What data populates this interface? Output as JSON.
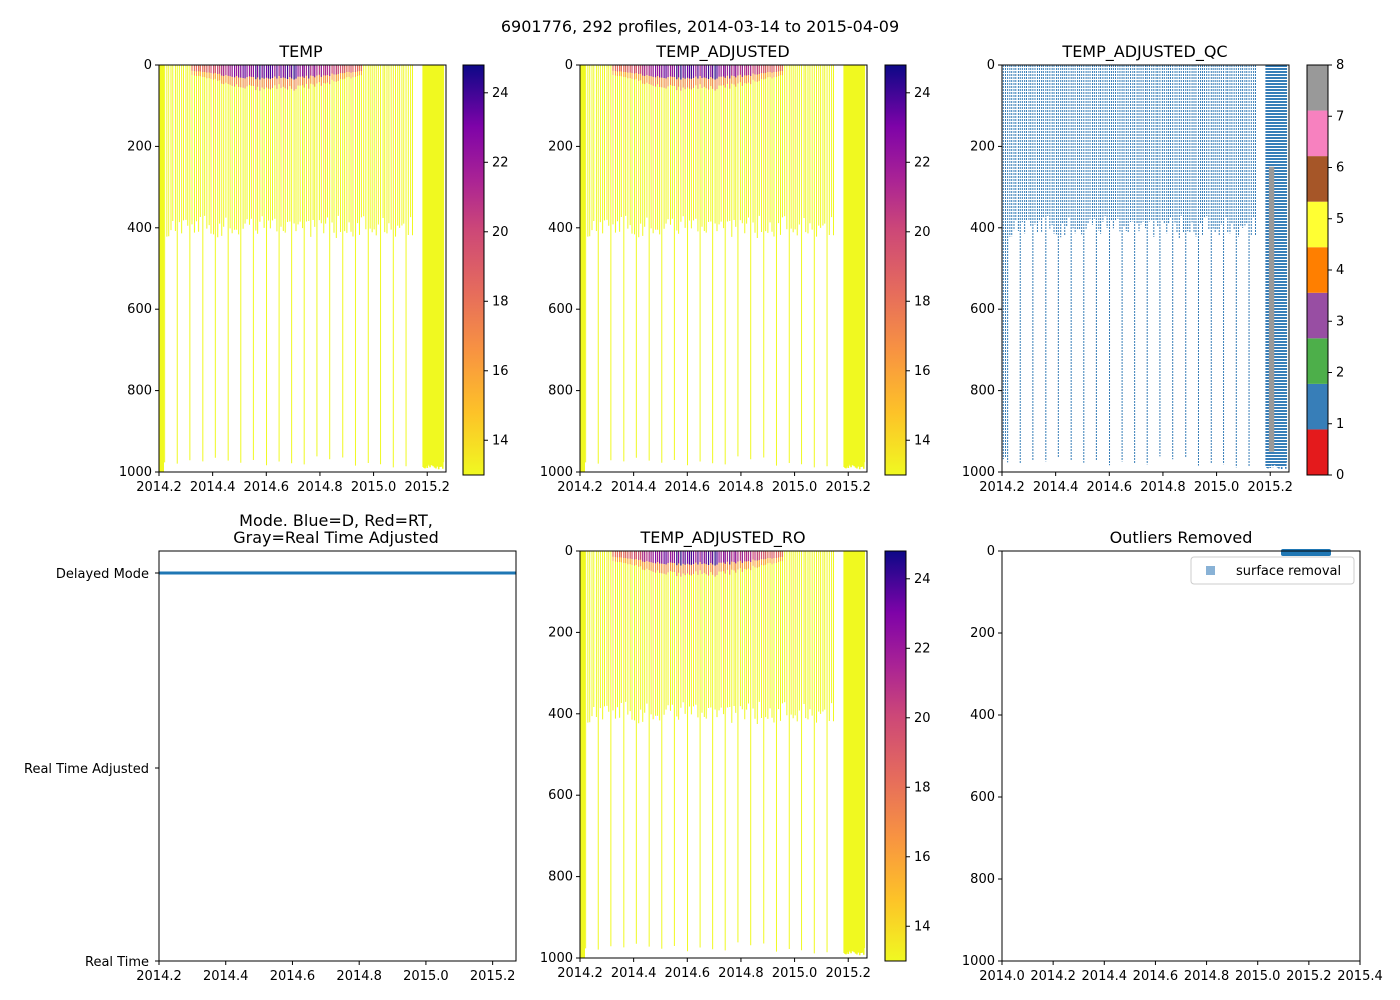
{
  "suptitle": "6901776, 292 profiles, 2014-03-14 to 2015-04-09",
  "colors": {
    "qc_palette": [
      "#e41a1c",
      "#377eb8",
      "#4daf4a",
      "#984ea3",
      "#ff7f00",
      "#ffff33",
      "#a65628",
      "#f781bf",
      "#999999"
    ],
    "mode_delayed": "#1f77b4",
    "legend_marker": "#89b2d6"
  },
  "chart_data": [
    {
      "id": "temp",
      "type": "heatmap",
      "title": "TEMP",
      "x_range": [
        2014.2,
        2015.27
      ],
      "y_range": [
        1000,
        0
      ],
      "x_ticks": [
        "2014.2",
        "2014.4",
        "2014.6",
        "2014.8",
        "2015.0",
        "2015.2"
      ],
      "y_ticks": [
        "0",
        "200",
        "400",
        "600",
        "800",
        "1000"
      ],
      "colorbar": {
        "colormap": "plasma_r",
        "range": [
          13,
          24.8
        ],
        "ticks": [
          "14",
          "16",
          "18",
          "20",
          "22",
          "24"
        ]
      },
      "notes": "Profiles mostly 13-14 °C (yellow); warm 20-24 °C layers in top ~30 m between 2014.3 and 2014.95; typical profile depth ~385 dbar, occasional deep profiles to ~985 dbar; densely sampled deep profiles after 2015.18."
    },
    {
      "id": "temp_adjusted",
      "type": "heatmap",
      "title": "TEMP_ADJUSTED",
      "x_range": [
        2014.2,
        2015.27
      ],
      "y_range": [
        1000,
        0
      ],
      "x_ticks": [
        "2014.2",
        "2014.4",
        "2014.6",
        "2014.8",
        "2015.0",
        "2015.2"
      ],
      "y_ticks": [
        "0",
        "200",
        "400",
        "600",
        "800",
        "1000"
      ],
      "colorbar": {
        "colormap": "plasma_r",
        "range": [
          13,
          24.8
        ],
        "ticks": [
          "14",
          "16",
          "18",
          "20",
          "22",
          "24"
        ]
      }
    },
    {
      "id": "temp_adjusted_qc",
      "type": "heatmap",
      "title": "TEMP_ADJUSTED_QC",
      "x_range": [
        2014.2,
        2015.27
      ],
      "y_range": [
        1000,
        0
      ],
      "x_ticks": [
        "2014.2",
        "2014.4",
        "2014.6",
        "2014.8",
        "2015.0",
        "2015.2"
      ],
      "y_ticks": [
        "0",
        "200",
        "400",
        "600",
        "800",
        "1000"
      ],
      "colorbar": {
        "colormap": "categorical",
        "range": [
          0,
          8
        ],
        "ticks": [
          "0",
          "1",
          "2",
          "3",
          "4",
          "5",
          "6",
          "7",
          "8"
        ]
      },
      "notes": "Almost all values flagged 1 (blue); a band of flag 8 (gray) around 2015.2 between ~250 and ~950 dbar."
    },
    {
      "id": "mode",
      "type": "scatter",
      "title_line1": "Mode. Blue=D, Red=RT,",
      "title_line2": "Gray=Real Time Adjusted",
      "x_range": [
        2014.2,
        2015.27
      ],
      "x_ticks": [
        "2014.2",
        "2014.4",
        "2014.6",
        "2014.8",
        "2015.0",
        "2015.2"
      ],
      "y_categories": [
        "Delayed Mode",
        "Real Time Adjusted",
        "Real Time"
      ],
      "series": [
        {
          "name": "Delayed Mode",
          "category": "Delayed Mode",
          "x_range": [
            2014.2,
            2015.27
          ]
        }
      ]
    },
    {
      "id": "temp_adjusted_ro",
      "type": "heatmap",
      "title": "TEMP_ADJUSTED_RO",
      "x_range": [
        2014.2,
        2015.27
      ],
      "y_range": [
        1000,
        0
      ],
      "x_ticks": [
        "2014.2",
        "2014.4",
        "2014.6",
        "2014.8",
        "2015.0",
        "2015.2"
      ],
      "y_ticks": [
        "0",
        "200",
        "400",
        "600",
        "800",
        "1000"
      ],
      "colorbar": {
        "colormap": "plasma_r",
        "range": [
          13,
          24.8
        ],
        "ticks": [
          "14",
          "16",
          "18",
          "20",
          "22",
          "24"
        ]
      }
    },
    {
      "id": "outliers",
      "type": "scatter",
      "title": "Outliers Removed",
      "x_range": [
        2014.0,
        2015.4
      ],
      "y_range": [
        1000,
        0
      ],
      "x_ticks": [
        "2014.0",
        "2014.2",
        "2014.4",
        "2014.6",
        "2014.8",
        "2015.0",
        "2015.2",
        "2015.4"
      ],
      "y_ticks": [
        "0",
        "200",
        "400",
        "600",
        "800",
        "1000"
      ],
      "legend": {
        "position": "upper-right",
        "entries": [
          "surface removal"
        ]
      },
      "series": [
        {
          "name": "surface removal",
          "x_range": [
            2015.1,
            2015.2
          ],
          "depth": 0
        }
      ]
    }
  ]
}
